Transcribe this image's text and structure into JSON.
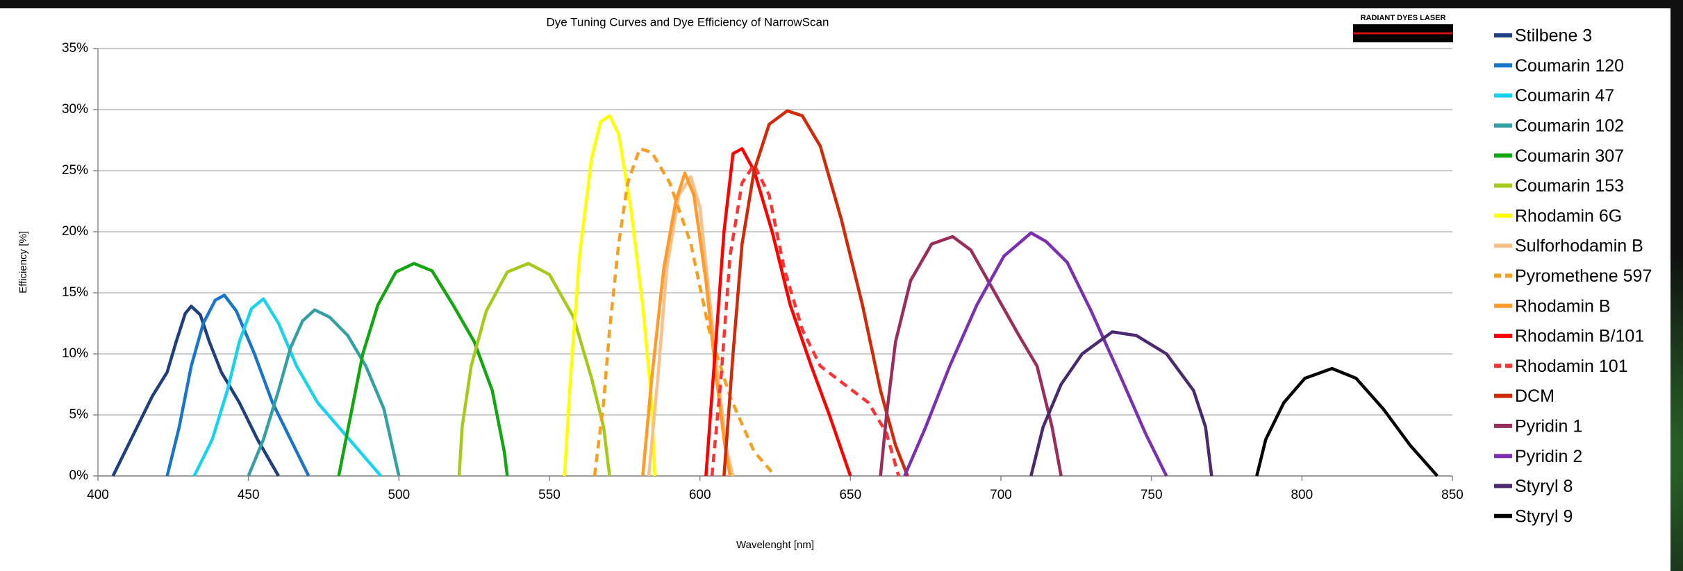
{
  "chart_data": {
    "type": "line",
    "title": "Dye Tuning Curves and Dye Efficiency of NarrowScan",
    "x_label": "Wavelenght [nm]",
    "y_label": "Efficiency [%]",
    "logo_text": "RADIANT DYES LASER",
    "xlim": [
      400,
      850
    ],
    "xticks": [
      400,
      450,
      500,
      550,
      600,
      650,
      700,
      750,
      800,
      850
    ],
    "ylim": [
      0,
      35
    ],
    "yticks": [
      {
        "value": 0,
        "label": "0%"
      },
      {
        "value": 5,
        "label": "5%"
      },
      {
        "value": 10,
        "label": "10%"
      },
      {
        "value": 15,
        "label": "15%"
      },
      {
        "value": 20,
        "label": "20%"
      },
      {
        "value": 25,
        "label": "25%"
      },
      {
        "value": 30,
        "label": "30%"
      },
      {
        "value": 35,
        "label": "35%"
      }
    ],
    "grid": true,
    "legend": "right",
    "series": [
      {
        "name": "Stilbene 3",
        "color": "#1f3f7f",
        "x": [
          405,
          412,
          418,
          423,
          426,
          429,
          431,
          434,
          437,
          441,
          447,
          453,
          460
        ],
        "values": [
          0,
          3.5,
          6.5,
          8.5,
          11,
          13.3,
          13.9,
          13.2,
          11,
          8.5,
          6,
          3,
          0
        ]
      },
      {
        "name": "Coumarin 120",
        "color": "#1a75c9",
        "x": [
          423,
          427,
          431,
          435,
          439,
          442,
          446,
          452,
          458,
          464,
          470
        ],
        "values": [
          0,
          4,
          9,
          12.5,
          14.4,
          14.8,
          13.5,
          10,
          6,
          3,
          0
        ]
      },
      {
        "name": "Coumarin 47",
        "color": "#19d2ef",
        "x": [
          432,
          438,
          443,
          447,
          451,
          455,
          460,
          466,
          473,
          480,
          487,
          494
        ],
        "values": [
          0,
          3,
          7,
          11,
          13.7,
          14.5,
          12.5,
          9,
          6,
          4,
          2,
          0
        ]
      },
      {
        "name": "Coumarin 102",
        "color": "#35a0a4",
        "x": [
          450,
          455,
          460,
          464,
          468,
          472,
          477,
          483,
          489,
          495,
          500
        ],
        "values": [
          0,
          3,
          7,
          10.5,
          12.7,
          13.6,
          13,
          11.5,
          9,
          5.5,
          0
        ]
      },
      {
        "name": "Coumarin 307",
        "color": "#12a612",
        "x": [
          480,
          484,
          488,
          493,
          499,
          505,
          511,
          518,
          525,
          531,
          535,
          536
        ],
        "values": [
          0,
          5,
          10,
          14,
          16.7,
          17.4,
          16.8,
          14,
          11,
          7,
          2,
          0
        ]
      },
      {
        "name": "Coumarin 153",
        "color": "#a7c91a",
        "x": [
          520,
          521,
          524,
          529,
          536,
          543,
          550,
          558,
          564,
          568,
          570
        ],
        "values": [
          0,
          4,
          9,
          13.5,
          16.7,
          17.4,
          16.5,
          13,
          8,
          4,
          0
        ]
      },
      {
        "name": "Rhodamin 6G",
        "color": "#ffff00",
        "x": [
          555,
          557,
          560,
          564,
          567,
          570,
          573,
          577,
          581,
          584,
          585
        ],
        "values": [
          0,
          8,
          18,
          26,
          29,
          29.5,
          28,
          22,
          14,
          6,
          0
        ]
      },
      {
        "name": "Sulforhodamin B",
        "color": "#f9c08a",
        "x": [
          583,
          586,
          589,
          593,
          597,
          600,
          603,
          606,
          609,
          611
        ],
        "values": [
          0,
          8,
          17,
          23,
          24.5,
          22,
          15,
          8,
          2,
          0
        ]
      },
      {
        "name": "Pyromethene 597",
        "color": "#f5a020",
        "dash": true,
        "x": [
          565,
          568,
          570,
          573,
          576,
          580,
          584,
          590,
          597,
          603,
          610,
          618,
          625
        ],
        "values": [
          0,
          6,
          12,
          19,
          24,
          26.8,
          26.5,
          24,
          19,
          12,
          6.5,
          2,
          0
        ]
      },
      {
        "name": "Rhodamin B",
        "color": "#ff9a2b",
        "x": [
          581,
          584,
          588,
          592,
          595,
          598,
          602,
          605,
          608,
          610
        ],
        "values": [
          0,
          8,
          17,
          22.5,
          24.8,
          23,
          16,
          9,
          3,
          0
        ]
      },
      {
        "name": "Rhodamin B/101",
        "color": "#ff0000",
        "x": [
          602,
          605,
          608,
          611,
          614,
          618,
          624,
          630,
          637,
          643,
          650
        ],
        "values": [
          0,
          10,
          20,
          26.4,
          26.8,
          25,
          20,
          14,
          9,
          5,
          0
        ]
      },
      {
        "name": "Rhodamin 101",
        "color": "#ff3333",
        "dash": true,
        "x": [
          604,
          607,
          610,
          614,
          618,
          623,
          628,
          634,
          640,
          648,
          656,
          662,
          666
        ],
        "values": [
          0,
          8,
          18,
          24,
          25.5,
          23,
          17,
          12,
          9,
          7.5,
          6,
          3.5,
          0
        ]
      },
      {
        "name": "DCM",
        "color": "#d02a0a",
        "x": [
          608,
          611,
          614,
          618,
          623,
          629,
          634,
          640,
          647,
          654,
          660,
          665,
          669
        ],
        "values": [
          0,
          10,
          19,
          25,
          28.8,
          29.9,
          29.5,
          27,
          21,
          14,
          7,
          2.5,
          0
        ]
      },
      {
        "name": "Pyridin 1",
        "color": "#9b2d5a",
        "x": [
          660,
          662,
          665,
          670,
          677,
          684,
          690,
          698,
          706,
          712,
          717,
          720
        ],
        "values": [
          0,
          5,
          11,
          16,
          19,
          19.6,
          18.5,
          15,
          11.5,
          9,
          4,
          0
        ]
      },
      {
        "name": "Pyridin 2",
        "color": "#7a30b0",
        "x": [
          668,
          675,
          683,
          692,
          701,
          710,
          715,
          722,
          730,
          740,
          748,
          755
        ],
        "values": [
          0,
          4,
          9,
          14,
          18,
          19.9,
          19.2,
          17.5,
          13.5,
          8,
          3.5,
          0
        ]
      },
      {
        "name": "Styryl 8",
        "color": "#4a2a6e",
        "x": [
          710,
          714,
          720,
          727,
          737,
          745,
          755,
          764,
          768,
          770
        ],
        "values": [
          0,
          4,
          7.5,
          10,
          11.8,
          11.5,
          10,
          7,
          4,
          0
        ]
      },
      {
        "name": "Styryl 9",
        "color": "#000000",
        "x": [
          785,
          788,
          794,
          801,
          810,
          818,
          827,
          836,
          845
        ],
        "values": [
          0,
          3,
          6,
          8,
          8.8,
          8,
          5.5,
          2.5,
          0
        ]
      }
    ]
  }
}
